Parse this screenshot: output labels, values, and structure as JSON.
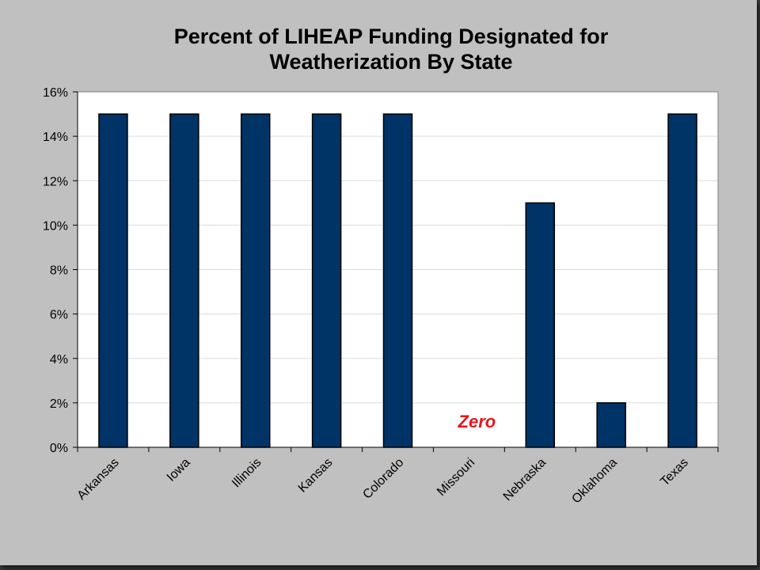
{
  "chart_data": {
    "type": "bar",
    "title_lines": [
      "Percent of LIHEAP Funding Designated for",
      "Weatherization By State"
    ],
    "categories": [
      "Arkansas",
      "Iowa",
      "Illinois",
      "Kansas",
      "Colorado",
      "Missouri",
      "Nebraska",
      "Oklahoma",
      "Texas"
    ],
    "values": [
      15,
      15,
      15,
      15,
      15,
      0,
      11,
      2,
      15
    ],
    "value_unit": "%",
    "ylim": [
      0,
      16
    ],
    "yticks": [
      "0%",
      "2%",
      "4%",
      "6%",
      "8%",
      "10%",
      "12%",
      "14%",
      "16%"
    ],
    "xlabel": "",
    "ylabel": "",
    "grid": true,
    "legend": "none",
    "bar_color": "#003366",
    "annotations": [
      {
        "text": "Zero",
        "category": "Missouri",
        "color": "#e8141a"
      }
    ]
  }
}
